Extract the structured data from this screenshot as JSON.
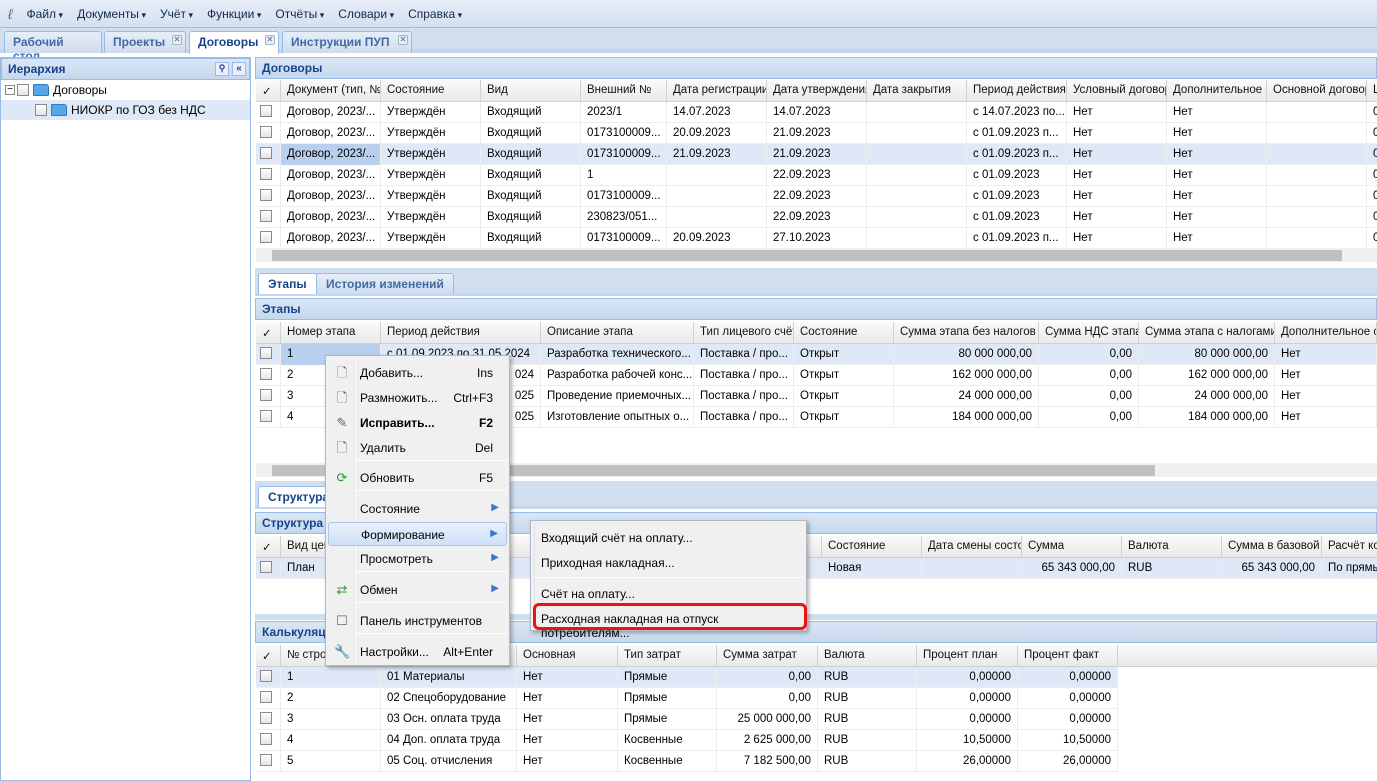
{
  "menubar": {
    "items": [
      "Файл",
      "Документы",
      "Учёт",
      "Функции",
      "Отчёты",
      "Словари",
      "Справка"
    ]
  },
  "tabs": [
    {
      "label": "Рабочий стол",
      "closable": false
    },
    {
      "label": "Проекты",
      "closable": true
    },
    {
      "label": "Договоры",
      "closable": true,
      "active": true
    },
    {
      "label": "Инструкции ПУП",
      "closable": true
    }
  ],
  "hierarchy": {
    "title": "Иерархия",
    "root": "Договоры",
    "child": "НИОКР по ГОЗ без НДС"
  },
  "contracts": {
    "title": "Договоры",
    "columns": [
      "Документ (тип, №",
      "Состояние",
      "Вид",
      "Внешний №",
      "Дата регистрации...",
      "Дата утверждения",
      "Дата закрытия",
      "Период действия...",
      "Условный договор",
      "Дополнительное с",
      "Основной договор",
      "Ц"
    ],
    "rows": [
      [
        "Договор, 2023/...",
        "Утверждён",
        "Входящий",
        "2023/1",
        "14.07.2023",
        "14.07.2023",
        "",
        "с 14.07.2023 по...",
        "Нет",
        "Нет",
        "",
        "0"
      ],
      [
        "Договор, 2023/...",
        "Утверждён",
        "Входящий",
        "0173100009...",
        "20.09.2023",
        "21.09.2023",
        "",
        "с 01.09.2023 п...",
        "Нет",
        "Нет",
        "",
        "0"
      ],
      [
        "Договор, 2023/...",
        "Утверждён",
        "Входящий",
        "0173100009...",
        "21.09.2023",
        "21.09.2023",
        "",
        "с 01.09.2023 п...",
        "Нет",
        "Нет",
        "",
        "0"
      ],
      [
        "Договор, 2023/...",
        "Утверждён",
        "Входящий",
        "1",
        "",
        "22.09.2023",
        "",
        "с 01.09.2023",
        "Нет",
        "Нет",
        "",
        "0"
      ],
      [
        "Договор, 2023/...",
        "Утверждён",
        "Входящий",
        "0173100009...",
        "",
        "22.09.2023",
        "",
        "с 01.09.2023",
        "Нет",
        "Нет",
        "",
        "0"
      ],
      [
        "Договор, 2023/...",
        "Утверждён",
        "Входящий",
        "230823/051...",
        "",
        "22.09.2023",
        "",
        "с 01.09.2023",
        "Нет",
        "Нет",
        "",
        "0"
      ],
      [
        "Договор, 2023/...",
        "Утверждён",
        "Входящий",
        "0173100009...",
        "20.09.2023",
        "27.10.2023",
        "",
        "с 01.09.2023 п...",
        "Нет",
        "Нет",
        "",
        "0"
      ]
    ]
  },
  "stage_tabs": [
    "Этапы",
    "История изменений"
  ],
  "stages": {
    "title": "Этапы",
    "columns": [
      "Номер этапа",
      "Период действия",
      "Описание этапа",
      "Тип лицевого счёт",
      "Состояние",
      "Сумма этапа без налогов",
      "Сумма НДС этапа",
      "Сумма этапа с налогами",
      "Дополнительное с"
    ],
    "rows": [
      [
        "1",
        "с 01.09.2023 по 31.05.2024",
        "Разработка технического...",
        "Поставка / про...",
        "Открыт",
        "80 000 000,00",
        "0,00",
        "80 000 000,00",
        "Нет"
      ],
      [
        "2",
        "024",
        "Разработка рабочей конс...",
        "Поставка / про...",
        "Открыт",
        "162 000 000,00",
        "0,00",
        "162 000 000,00",
        "Нет"
      ],
      [
        "3",
        "025",
        "Проведение приемочных...",
        "Поставка / про...",
        "Открыт",
        "24 000 000,00",
        "0,00",
        "24 000 000,00",
        "Нет"
      ],
      [
        "4",
        "025",
        "Изготовление опытных о...",
        "Поставка / про...",
        "Открыт",
        "184 000 000,00",
        "0,00",
        "184 000 000,00",
        "Нет"
      ]
    ]
  },
  "structure": {
    "tab": "Структура",
    "title": "Структура",
    "columns": [
      "Вид цен",
      "",
      "Состояние",
      "Дата смены состоя",
      "Сумма",
      "Валюта",
      "Сумма в базовой в",
      "Расчёт ко"
    ],
    "rows": [
      [
        "План",
        "",
        "Новая",
        "",
        "65 343 000,00",
        "RUB",
        "65 343 000,00",
        "По прямы"
      ]
    ]
  },
  "calc": {
    "title": "Калькуляция",
    "columns": [
      "№ стро",
      "",
      "Основная",
      "Тип затрат",
      "Сумма затрат",
      "Валюта",
      "Процент план",
      "Процент факт"
    ],
    "rows": [
      [
        "1",
        "01 Материалы",
        "Нет",
        "Прямые",
        "0,00",
        "RUB",
        "0,00000",
        "0,00000"
      ],
      [
        "2",
        "02 Спецоборудование",
        "Нет",
        "Прямые",
        "0,00",
        "RUB",
        "0,00000",
        "0,00000"
      ],
      [
        "3",
        "03 Осн. оплата труда",
        "Нет",
        "Прямые",
        "25 000 000,00",
        "RUB",
        "0,00000",
        "0,00000"
      ],
      [
        "4",
        "04 Доп. оплата труда",
        "Нет",
        "Косвенные",
        "2 625 000,00",
        "RUB",
        "10,50000",
        "10,50000"
      ],
      [
        "5",
        "05 Соц. отчисления",
        "Нет",
        "Косвенные",
        "7 182 500,00",
        "RUB",
        "26,00000",
        "26,00000"
      ]
    ]
  },
  "context_menu": {
    "items": [
      {
        "label": "Добавить...",
        "shortcut": "Ins",
        "icon": "document-icon"
      },
      {
        "label": "Размножить...",
        "shortcut": "Ctrl+F3",
        "icon": "document-add-icon"
      },
      {
        "label": "Исправить...",
        "shortcut": "F2",
        "icon": "edit-icon",
        "bold": true
      },
      {
        "label": "Удалить",
        "shortcut": "Del",
        "icon": "document-delete-icon"
      },
      {
        "label": "Обновить",
        "shortcut": "F5",
        "icon": "refresh-icon"
      },
      {
        "label": "Состояние",
        "submenu": true
      },
      {
        "label": "Формирование",
        "submenu": true,
        "highlighted": true
      },
      {
        "label": "Просмотреть",
        "submenu": true
      },
      {
        "label": "Обмен",
        "submenu": true,
        "icon": "exchange-icon"
      },
      {
        "label": "Панель инструментов",
        "icon": "checkbox-icon"
      },
      {
        "label": "Настройки...",
        "shortcut": "Alt+Enter",
        "icon": "wrench-icon"
      }
    ]
  },
  "submenu": {
    "items": [
      "Входящий счёт на оплату...",
      "Приходная накладная...",
      "Счёт на оплату...",
      "Расходная накладная на отпуск потребителям..."
    ],
    "highlight_color": "#ee1111"
  }
}
